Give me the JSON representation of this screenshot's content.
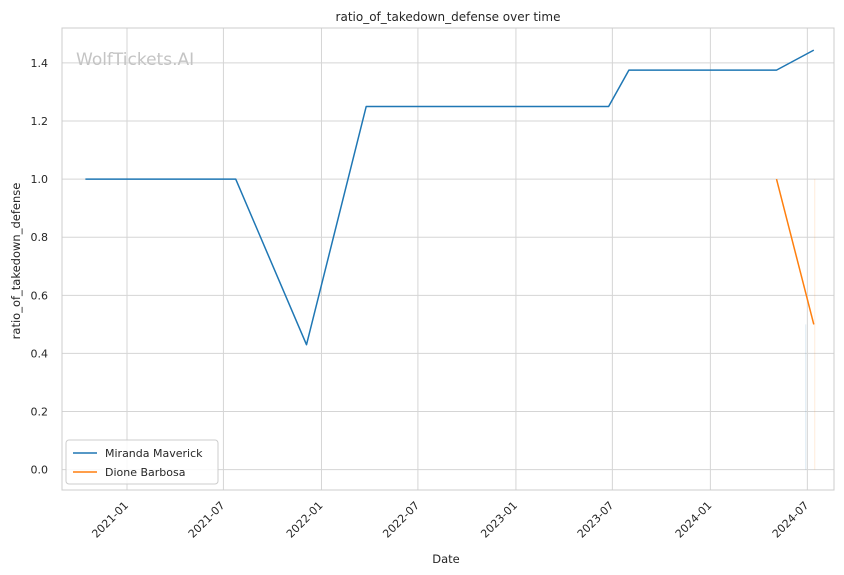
{
  "chart_data": {
    "type": "line",
    "title": "ratio_of_takedown_defense over time",
    "xlabel": "Date",
    "ylabel": "ratio_of_takedown_defense",
    "watermark": "WolfTickets.AI",
    "x_ticks": [
      "2021-01",
      "2021-07",
      "2022-01",
      "2022-07",
      "2023-01",
      "2023-07",
      "2024-01",
      "2024-07"
    ],
    "y_ticks": [
      "0.0",
      "0.2",
      "0.4",
      "0.6",
      "0.8",
      "1.0",
      "1.2",
      "1.4"
    ],
    "xlim": [
      "2020-09-01",
      "2024-08-20"
    ],
    "ylim": [
      -0.07,
      1.52
    ],
    "grid": true,
    "legend_position": "lower-left",
    "series": [
      {
        "name": "Miranda Maverick",
        "color": "#1f77b4",
        "points": [
          {
            "x": "2020-10-15",
            "y": 1.0
          },
          {
            "x": "2021-07-24",
            "y": 1.0
          },
          {
            "x": "2021-12-04",
            "y": 0.43
          },
          {
            "x": "2022-03-26",
            "y": 1.25
          },
          {
            "x": "2023-06-24",
            "y": 1.25
          },
          {
            "x": "2023-08-01",
            "y": 1.375
          },
          {
            "x": "2024-05-04",
            "y": 1.375
          },
          {
            "x": "2024-07-13",
            "y": 1.444
          }
        ]
      },
      {
        "name": "Dione Barbosa",
        "color": "#ff7f0e",
        "points": [
          {
            "x": "2024-05-04",
            "y": 1.0
          },
          {
            "x": "2024-07-13",
            "y": 0.5
          }
        ]
      }
    ]
  }
}
